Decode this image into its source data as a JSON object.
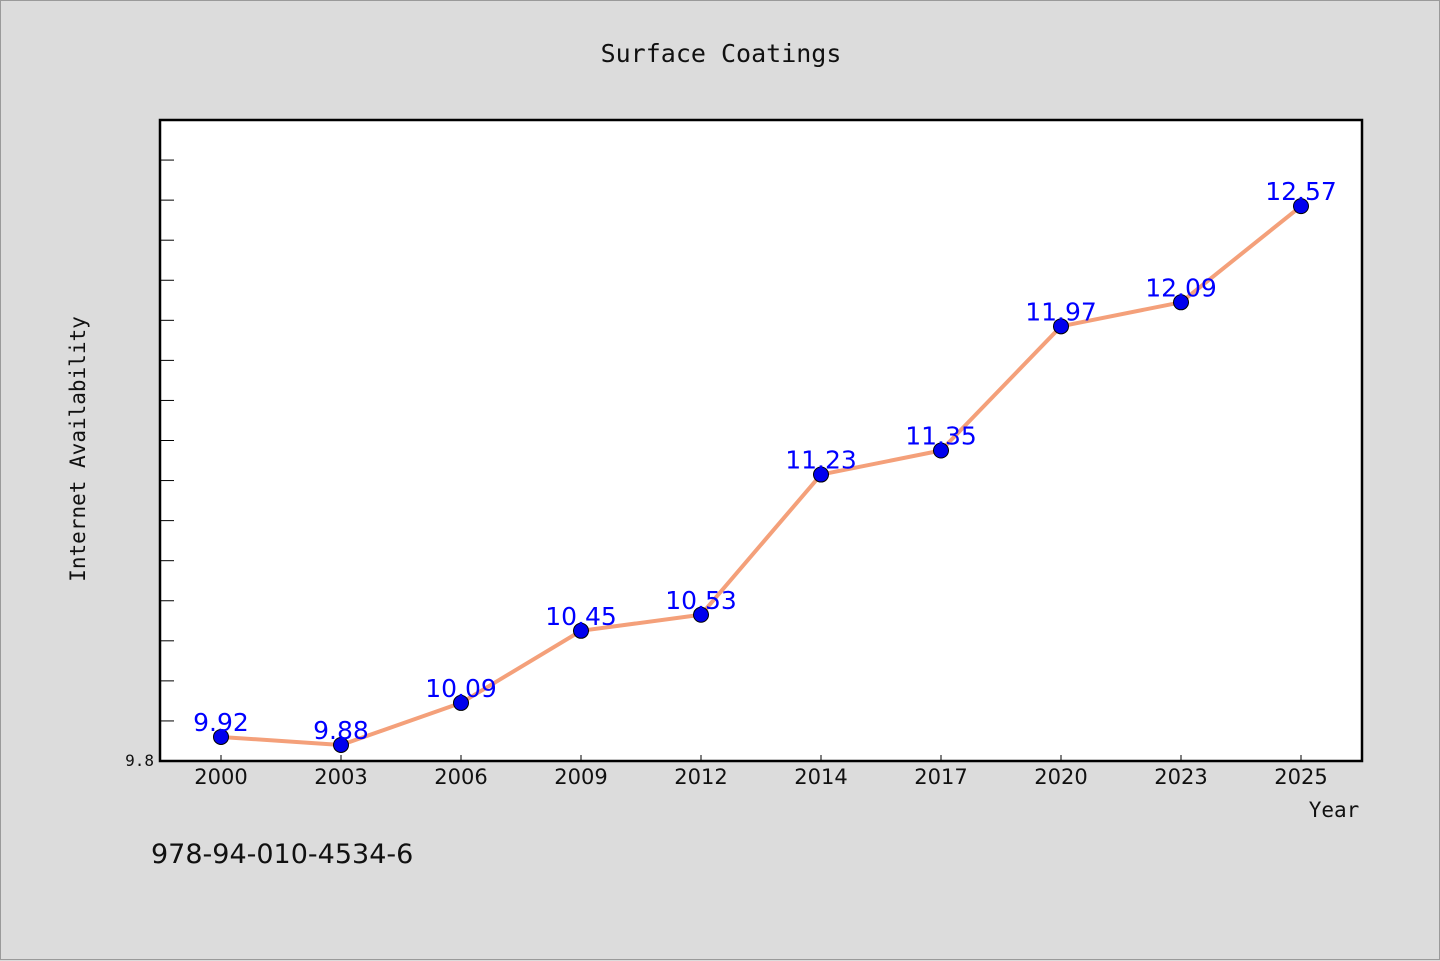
{
  "chart_data": {
    "type": "line",
    "title": "Surface Coatings",
    "xlabel": "Year",
    "ylabel": "Internet Availability",
    "categories": [
      "2000",
      "2003",
      "2006",
      "2009",
      "2012",
      "2014",
      "2017",
      "2020",
      "2023",
      "2025"
    ],
    "series": [
      {
        "values": [
          9.92,
          9.88,
          10.09,
          10.45,
          10.53,
          11.23,
          11.35,
          11.97,
          12.09,
          12.57
        ]
      }
    ],
    "data_labels": [
      "9.92",
      "9.88",
      "10.09",
      "10.45",
      "10.53",
      "11.23",
      "11.35",
      "11.97",
      "12.09",
      "12.57"
    ],
    "ylim": [
      9.8,
      13.0
    ],
    "y_tick_labels": [
      "9.8"
    ],
    "grid": false,
    "legend": "none",
    "colors": {
      "line": "#f4a07a",
      "marker": "#0000ee",
      "data_label": "#0000ff",
      "plot_background": "#ffffff",
      "page_background": "#dcdcdc"
    }
  },
  "footnote": "978-94-010-4534-6"
}
